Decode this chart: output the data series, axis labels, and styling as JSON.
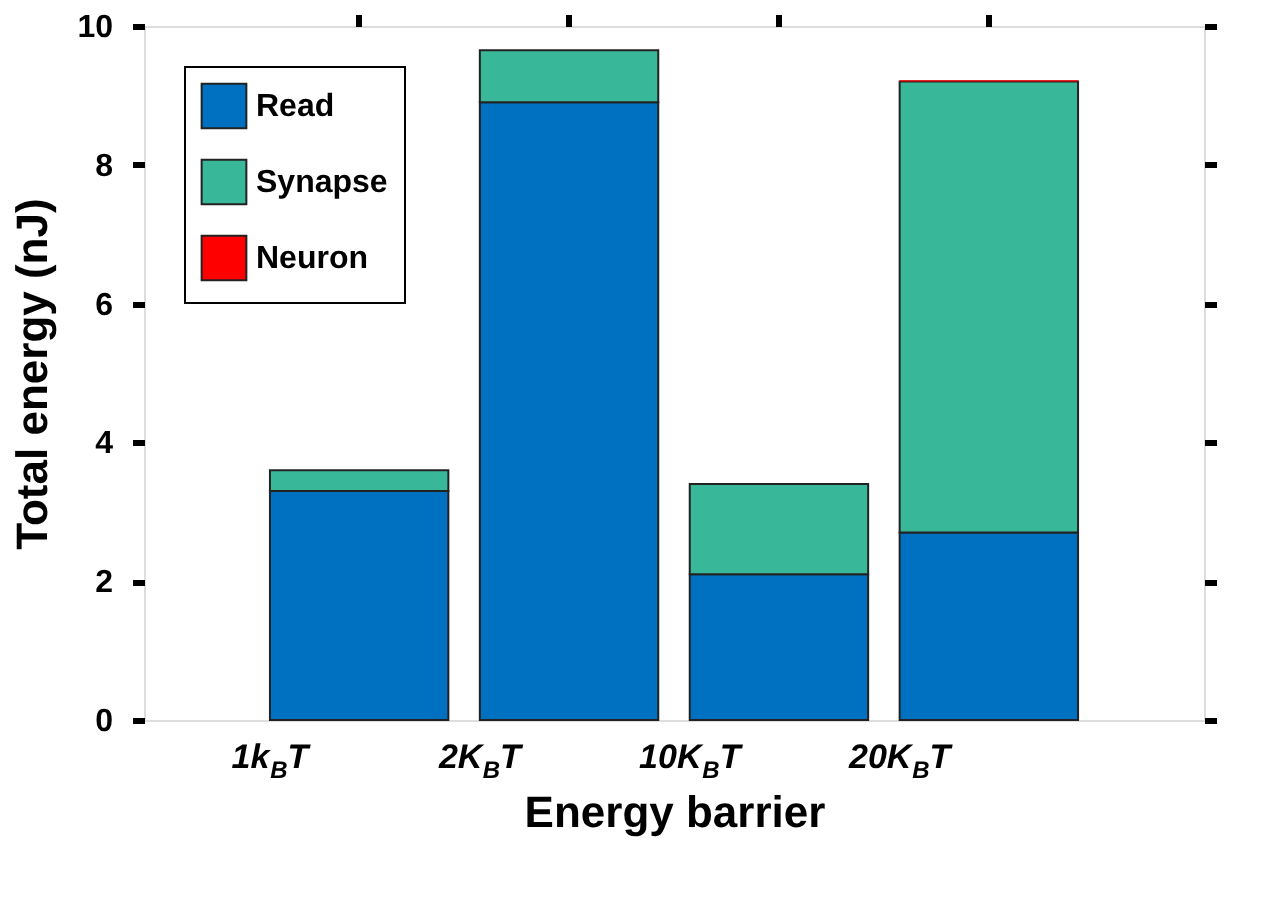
{
  "chart_data": {
    "type": "bar",
    "stacked": true,
    "xlabel": "Energy barrier",
    "ylabel": "Total energy (nJ)",
    "categories": [
      "1k$_{B}$T",
      "2K$_{B}$T",
      "10K$_{B}$T",
      "20K$_{B}$T"
    ],
    "series": [
      {
        "name": "Read",
        "color": "#0070c0",
        "values": [
          3.3,
          8.9,
          2.1,
          2.7
        ]
      },
      {
        "name": "Synapse",
        "color": "#38b898",
        "values": [
          0.3,
          0.75,
          1.3,
          6.5
        ]
      },
      {
        "name": "Neuron",
        "color": "#ff0000",
        "values": [
          null,
          null,
          null,
          0.02
        ]
      }
    ],
    "ylim": [
      0,
      10
    ],
    "yticks": [
      0,
      2,
      4,
      6,
      8,
      10
    ],
    "grid": false,
    "legend": "top left"
  }
}
